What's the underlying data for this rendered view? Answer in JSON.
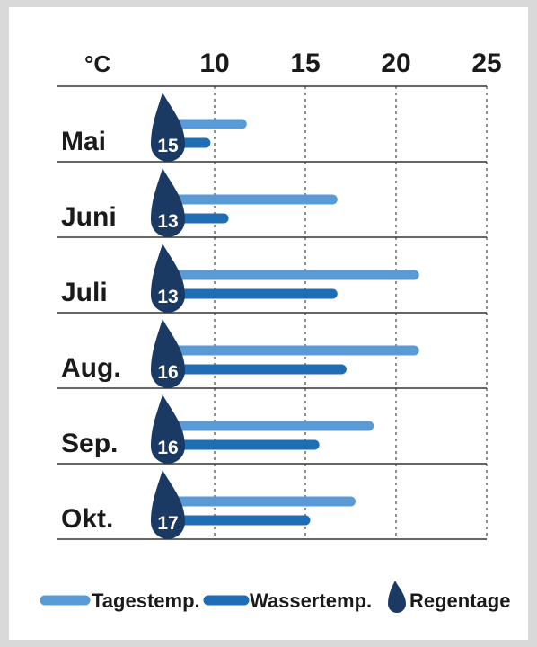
{
  "chart_data": {
    "type": "bar",
    "unit_label": "°C",
    "x_ticks": [
      10,
      15,
      20,
      25
    ],
    "xlim": [
      6,
      25
    ],
    "categories": [
      "Mai",
      "Juni",
      "Juli",
      "Aug.",
      "Sep.",
      "Okt."
    ],
    "series": [
      {
        "name": "Tagestemp.",
        "color": "#5b9bd5",
        "values": [
          11.5,
          16.5,
          21,
          21,
          18.5,
          17.5
        ]
      },
      {
        "name": "Wassertemp.",
        "color": "#1f6db5",
        "values": [
          9.5,
          10.5,
          16.5,
          17,
          15.5,
          15
        ]
      }
    ],
    "rain_days": {
      "name": "Regentage",
      "color": "#1b3a63",
      "values": [
        15,
        13,
        13,
        16,
        16,
        17
      ]
    },
    "legend_position": "bottom",
    "grid": "vertical-dashed"
  }
}
